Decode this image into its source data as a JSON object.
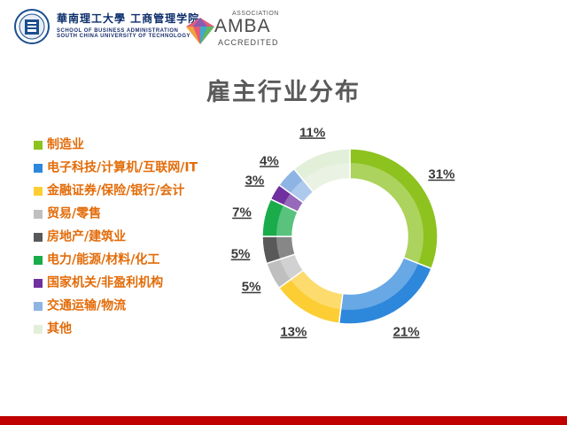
{
  "header": {
    "scut_name_cn": "華南理工大學 工商管理学院",
    "scut_name_en_line1": "SCHOOL OF BUSINESS ADMINISTRATION",
    "scut_name_en_line2": "SOUTH CHINA UNIVERSITY OF TECHNOLOGY",
    "amba_association": "ASSOCIATION",
    "amba_word": "AMBA",
    "amba_accredited": "ACCREDITED",
    "scut_seal_icon": "scut-seal-icon",
    "amba_icon": "amba-diamond-icon"
  },
  "chart_data": {
    "type": "pie",
    "variant": "donut",
    "title": "雇主行业分布",
    "legend_position": "left",
    "series": [
      {
        "name": "制造业",
        "value": 31,
        "label": "31%",
        "color": "#8dc21f"
      },
      {
        "name": "电子科技/计算机/互联网/IT",
        "value": 21,
        "label": "21%",
        "color": "#2d87db"
      },
      {
        "name": "金融证券/保险/银行/会计",
        "value": 13,
        "label": "13%",
        "color": "#fcce34"
      },
      {
        "name": "贸易/零售",
        "value": 5,
        "label": "5%",
        "color": "#bfbfbf"
      },
      {
        "name": "房地产/建筑业",
        "value": 5,
        "label": "5%",
        "color": "#595959"
      },
      {
        "name": "电力/能源/材料/化工",
        "value": 7,
        "label": "7%",
        "color": "#1aab4b"
      },
      {
        "name": "国家机关/非盈利机构",
        "value": 3,
        "label": "3%",
        "color": "#7030a0"
      },
      {
        "name": "交通运输/物流",
        "value": 4,
        "label": "4%",
        "color": "#8eb4e3"
      },
      {
        "name": "其他",
        "value": 11,
        "label": "11%",
        "color": "#e2efd9"
      }
    ]
  },
  "colors": {
    "legend_text": "#e36c09",
    "title": "#5a5a5a",
    "footer_bar": "#c00000"
  }
}
